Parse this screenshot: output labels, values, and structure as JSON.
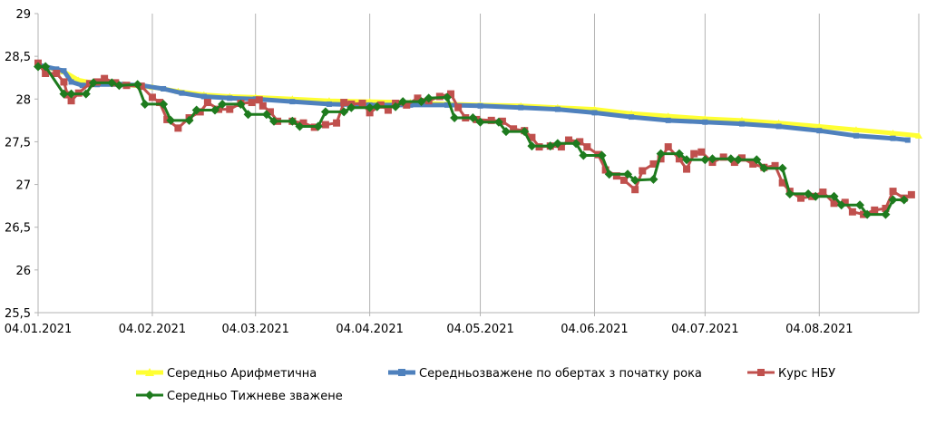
{
  "chart_data": {
    "type": "line",
    "ylim": [
      25.5,
      29
    ],
    "yticks": [
      "29",
      "28,5",
      "28",
      "27,5",
      "27",
      "26,5",
      "26",
      "25,5"
    ],
    "ytick_values": [
      29,
      28.5,
      28,
      27.5,
      27,
      26.5,
      26,
      25.5
    ],
    "xlim": [
      "2021-01-04",
      "2021-08-31"
    ],
    "xticks": [
      "04.01.2021",
      "04.02.2021",
      "04.03.2021",
      "04.04.2021",
      "04.05.2021",
      "04.06.2021",
      "04.07.2021",
      "04.08.2021"
    ],
    "xtick_dates": [
      "2021-01-04",
      "2021-02-04",
      "2021-03-04",
      "2021-04-04",
      "2021-05-04",
      "2021-06-04",
      "2021-07-04",
      "2021-08-04"
    ],
    "grid": {
      "vertical": true,
      "horizontal": false
    },
    "legend_position": "bottom",
    "series": [
      {
        "name": "Середньо Арифметична",
        "color": "#FFFF33",
        "marker": "triangle",
        "points": [
          [
            "2021-01-04",
            28.4
          ],
          [
            "2021-01-11",
            28.32
          ],
          [
            "2021-01-15",
            28.22
          ],
          [
            "2021-01-20",
            28.18
          ],
          [
            "2021-01-27",
            28.17
          ],
          [
            "2021-02-04",
            28.14
          ],
          [
            "2021-02-11",
            28.09
          ],
          [
            "2021-02-18",
            28.05
          ],
          [
            "2021-02-25",
            28.03
          ],
          [
            "2021-03-04",
            28.02
          ],
          [
            "2021-03-14",
            28.0
          ],
          [
            "2021-03-24",
            27.98
          ],
          [
            "2021-04-04",
            27.97
          ],
          [
            "2021-04-15",
            27.96
          ],
          [
            "2021-04-25",
            27.94
          ],
          [
            "2021-05-04",
            27.93
          ],
          [
            "2021-05-15",
            27.92
          ],
          [
            "2021-05-25",
            27.9
          ],
          [
            "2021-06-04",
            27.88
          ],
          [
            "2021-06-14",
            27.83
          ],
          [
            "2021-06-24",
            27.8
          ],
          [
            "2021-07-04",
            27.77
          ],
          [
            "2021-07-14",
            27.75
          ],
          [
            "2021-07-24",
            27.72
          ],
          [
            "2021-08-04",
            27.68
          ],
          [
            "2021-08-14",
            27.64
          ],
          [
            "2021-08-24",
            27.6
          ],
          [
            "2021-08-31",
            27.57
          ]
        ]
      },
      {
        "name": "Середньозважене по обертах з початку рока",
        "color": "#4F81BD",
        "marker": "square",
        "points": [
          [
            "2021-01-04",
            28.4
          ],
          [
            "2021-01-09",
            28.35
          ],
          [
            "2021-01-11",
            28.33
          ],
          [
            "2021-01-13",
            28.2
          ],
          [
            "2021-01-16",
            28.16
          ],
          [
            "2021-01-20",
            28.17
          ],
          [
            "2021-01-27",
            28.17
          ],
          [
            "2021-02-01",
            28.16
          ],
          [
            "2021-02-07",
            28.12
          ],
          [
            "2021-02-12",
            28.07
          ],
          [
            "2021-02-18",
            28.03
          ],
          [
            "2021-02-25",
            28.01
          ],
          [
            "2021-03-04",
            28.0
          ],
          [
            "2021-03-14",
            27.97
          ],
          [
            "2021-03-24",
            27.94
          ],
          [
            "2021-04-04",
            27.93
          ],
          [
            "2021-04-15",
            27.93
          ],
          [
            "2021-04-25",
            27.93
          ],
          [
            "2021-05-04",
            27.92
          ],
          [
            "2021-05-15",
            27.9
          ],
          [
            "2021-05-25",
            27.88
          ],
          [
            "2021-06-04",
            27.84
          ],
          [
            "2021-06-14",
            27.79
          ],
          [
            "2021-06-24",
            27.75
          ],
          [
            "2021-07-04",
            27.73
          ],
          [
            "2021-07-14",
            27.71
          ],
          [
            "2021-07-24",
            27.68
          ],
          [
            "2021-08-04",
            27.63
          ],
          [
            "2021-08-14",
            27.57
          ],
          [
            "2021-08-24",
            27.54
          ],
          [
            "2021-08-28",
            27.52
          ]
        ]
      },
      {
        "name": "Курс НБУ",
        "color": "#C0504D",
        "marker": "square",
        "points": [
          [
            "2021-01-04",
            28.42
          ],
          [
            "2021-01-06",
            28.3
          ],
          [
            "2021-01-09",
            28.3
          ],
          [
            "2021-01-11",
            28.2
          ],
          [
            "2021-01-12",
            28.05
          ],
          [
            "2021-01-13",
            27.98
          ],
          [
            "2021-01-15",
            28.07
          ],
          [
            "2021-01-18",
            28.18
          ],
          [
            "2021-01-20",
            28.2
          ],
          [
            "2021-01-22",
            28.24
          ],
          [
            "2021-01-25",
            28.19
          ],
          [
            "2021-01-28",
            28.16
          ],
          [
            "2021-02-01",
            28.15
          ],
          [
            "2021-02-04",
            28.02
          ],
          [
            "2021-02-06",
            27.96
          ],
          [
            "2021-02-08",
            27.76
          ],
          [
            "2021-02-11",
            27.66
          ],
          [
            "2021-02-14",
            27.78
          ],
          [
            "2021-02-17",
            27.85
          ],
          [
            "2021-02-19",
            27.96
          ],
          [
            "2021-02-22",
            27.88
          ],
          [
            "2021-02-25",
            27.88
          ],
          [
            "2021-02-28",
            27.95
          ],
          [
            "2021-03-03",
            27.96
          ],
          [
            "2021-03-05",
            27.99
          ],
          [
            "2021-03-06",
            27.92
          ],
          [
            "2021-03-08",
            27.85
          ],
          [
            "2021-03-10",
            27.74
          ],
          [
            "2021-03-14",
            27.74
          ],
          [
            "2021-03-17",
            27.72
          ],
          [
            "2021-03-20",
            27.67
          ],
          [
            "2021-03-23",
            27.7
          ],
          [
            "2021-03-26",
            27.72
          ],
          [
            "2021-03-28",
            27.96
          ],
          [
            "2021-03-30",
            27.94
          ],
          [
            "2021-04-02",
            27.95
          ],
          [
            "2021-04-04",
            27.84
          ],
          [
            "2021-04-07",
            27.93
          ],
          [
            "2021-04-09",
            27.87
          ],
          [
            "2021-04-11",
            27.95
          ],
          [
            "2021-04-14",
            27.93
          ],
          [
            "2021-04-17",
            28.01
          ],
          [
            "2021-04-20",
            27.98
          ],
          [
            "2021-04-23",
            28.03
          ],
          [
            "2021-04-26",
            28.06
          ],
          [
            "2021-04-28",
            27.9
          ],
          [
            "2021-04-30",
            27.78
          ],
          [
            "2021-05-03",
            27.76
          ],
          [
            "2021-05-07",
            27.75
          ],
          [
            "2021-05-10",
            27.74
          ],
          [
            "2021-05-13",
            27.65
          ],
          [
            "2021-05-16",
            27.63
          ],
          [
            "2021-05-18",
            27.55
          ],
          [
            "2021-05-20",
            27.44
          ],
          [
            "2021-05-23",
            27.45
          ],
          [
            "2021-05-26",
            27.44
          ],
          [
            "2021-05-28",
            27.52
          ],
          [
            "2021-05-31",
            27.5
          ],
          [
            "2021-06-02",
            27.44
          ],
          [
            "2021-06-05",
            27.35
          ],
          [
            "2021-06-07",
            27.17
          ],
          [
            "2021-06-10",
            27.1
          ],
          [
            "2021-06-12",
            27.05
          ],
          [
            "2021-06-15",
            26.94
          ],
          [
            "2021-06-17",
            27.16
          ],
          [
            "2021-06-20",
            27.24
          ],
          [
            "2021-06-22",
            27.3
          ],
          [
            "2021-06-24",
            27.44
          ],
          [
            "2021-06-27",
            27.3
          ],
          [
            "2021-06-29",
            27.18
          ],
          [
            "2021-07-01",
            27.36
          ],
          [
            "2021-07-03",
            27.38
          ],
          [
            "2021-07-06",
            27.26
          ],
          [
            "2021-07-09",
            27.32
          ],
          [
            "2021-07-12",
            27.26
          ],
          [
            "2021-07-14",
            27.31
          ],
          [
            "2021-07-17",
            27.24
          ],
          [
            "2021-07-20",
            27.2
          ],
          [
            "2021-07-23",
            27.22
          ],
          [
            "2021-07-25",
            27.02
          ],
          [
            "2021-07-27",
            26.92
          ],
          [
            "2021-07-30",
            26.84
          ],
          [
            "2021-08-02",
            26.86
          ],
          [
            "2021-08-05",
            26.91
          ],
          [
            "2021-08-08",
            26.78
          ],
          [
            "2021-08-11",
            26.79
          ],
          [
            "2021-08-13",
            26.68
          ],
          [
            "2021-08-16",
            26.65
          ],
          [
            "2021-08-19",
            26.7
          ],
          [
            "2021-08-22",
            26.72
          ],
          [
            "2021-08-24",
            26.92
          ],
          [
            "2021-08-27",
            26.84
          ],
          [
            "2021-08-29",
            26.88
          ]
        ]
      },
      {
        "name": "Середньо Тижневе зважене",
        "color": "#1E7B1E",
        "marker": "diamond",
        "points": [
          [
            "2021-01-04",
            28.38
          ],
          [
            "2021-01-06",
            28.38
          ],
          [
            "2021-01-11",
            28.06
          ],
          [
            "2021-01-13",
            28.06
          ],
          [
            "2021-01-17",
            28.06
          ],
          [
            "2021-01-19",
            28.19
          ],
          [
            "2021-01-24",
            28.19
          ],
          [
            "2021-01-26",
            28.16
          ],
          [
            "2021-01-31",
            28.17
          ],
          [
            "2021-02-02",
            27.94
          ],
          [
            "2021-02-07",
            27.94
          ],
          [
            "2021-02-09",
            27.75
          ],
          [
            "2021-02-14",
            27.75
          ],
          [
            "2021-02-16",
            27.87
          ],
          [
            "2021-02-21",
            27.87
          ],
          [
            "2021-02-23",
            27.94
          ],
          [
            "2021-02-28",
            27.94
          ],
          [
            "2021-03-02",
            27.82
          ],
          [
            "2021-03-07",
            27.82
          ],
          [
            "2021-03-09",
            27.74
          ],
          [
            "2021-03-14",
            27.74
          ],
          [
            "2021-03-16",
            27.68
          ],
          [
            "2021-03-21",
            27.68
          ],
          [
            "2021-03-23",
            27.85
          ],
          [
            "2021-03-28",
            27.85
          ],
          [
            "2021-03-30",
            27.9
          ],
          [
            "2021-04-04",
            27.9
          ],
          [
            "2021-04-06",
            27.91
          ],
          [
            "2021-04-11",
            27.91
          ],
          [
            "2021-04-13",
            27.97
          ],
          [
            "2021-04-18",
            27.97
          ],
          [
            "2021-04-20",
            28.01
          ],
          [
            "2021-04-25",
            28.02
          ],
          [
            "2021-04-27",
            27.78
          ],
          [
            "2021-05-02",
            27.78
          ],
          [
            "2021-05-04",
            27.73
          ],
          [
            "2021-05-09",
            27.73
          ],
          [
            "2021-05-11",
            27.62
          ],
          [
            "2021-05-16",
            27.62
          ],
          [
            "2021-05-18",
            27.45
          ],
          [
            "2021-05-23",
            27.45
          ],
          [
            "2021-05-25",
            27.48
          ],
          [
            "2021-05-30",
            27.48
          ],
          [
            "2021-06-01",
            27.34
          ],
          [
            "2021-06-06",
            27.34
          ],
          [
            "2021-06-08",
            27.12
          ],
          [
            "2021-06-13",
            27.12
          ],
          [
            "2021-06-15",
            27.05
          ],
          [
            "2021-06-20",
            27.06
          ],
          [
            "2021-06-22",
            27.36
          ],
          [
            "2021-06-27",
            27.36
          ],
          [
            "2021-06-29",
            27.29
          ],
          [
            "2021-07-04",
            27.29
          ],
          [
            "2021-07-06",
            27.3
          ],
          [
            "2021-07-11",
            27.3
          ],
          [
            "2021-07-13",
            27.29
          ],
          [
            "2021-07-18",
            27.29
          ],
          [
            "2021-07-20",
            27.19
          ],
          [
            "2021-07-25",
            27.19
          ],
          [
            "2021-07-27",
            26.89
          ],
          [
            "2021-08-01",
            26.89
          ],
          [
            "2021-08-03",
            26.86
          ],
          [
            "2021-08-08",
            26.86
          ],
          [
            "2021-08-10",
            26.76
          ],
          [
            "2021-08-15",
            26.76
          ],
          [
            "2021-08-17",
            26.65
          ],
          [
            "2021-08-22",
            26.65
          ],
          [
            "2021-08-24",
            26.82
          ],
          [
            "2021-08-27",
            26.82
          ]
        ]
      }
    ]
  }
}
